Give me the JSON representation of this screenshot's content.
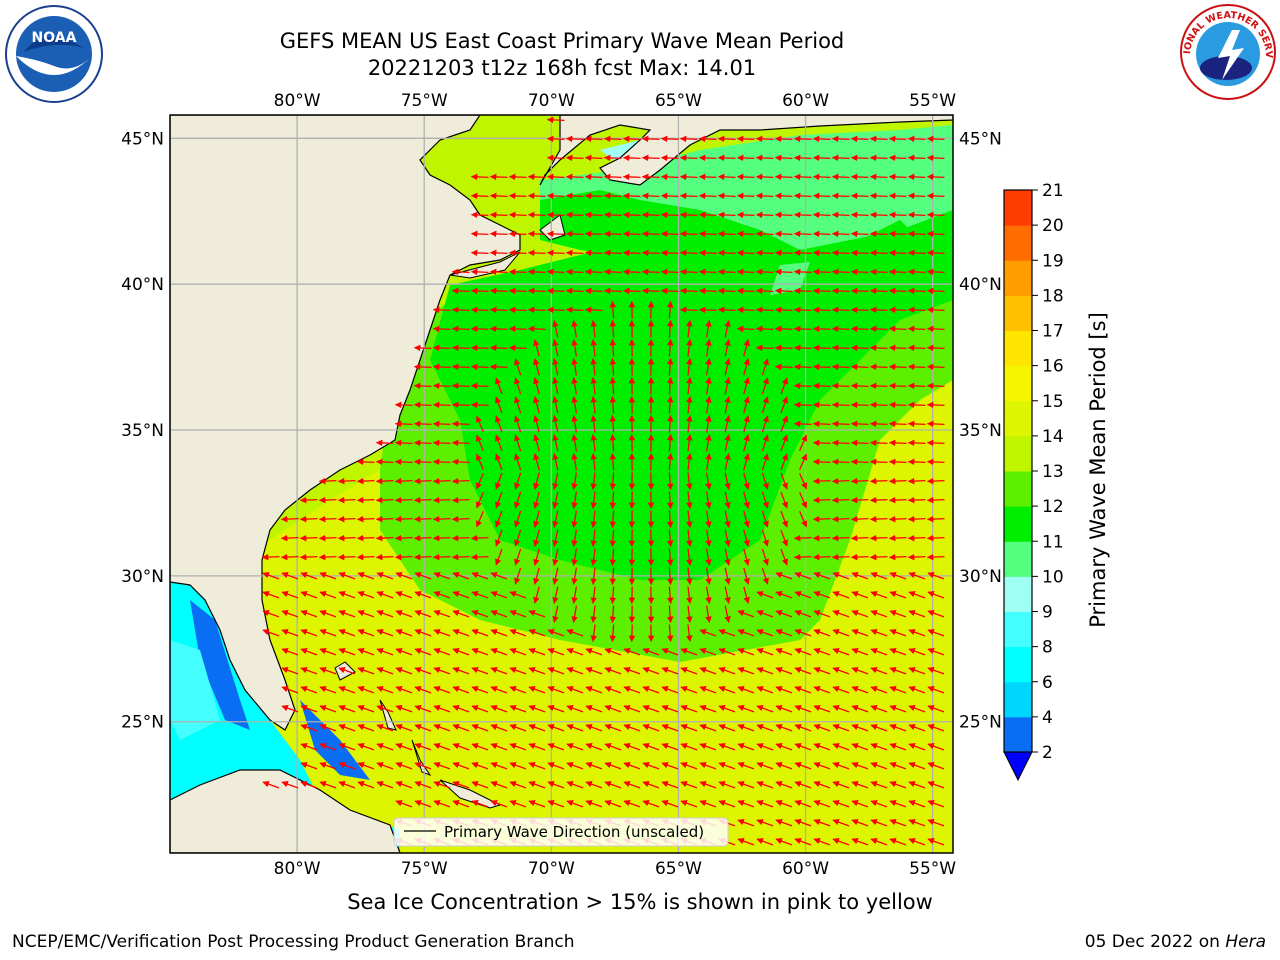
{
  "title": {
    "line1": "GEFS MEAN US East Coast Primary Wave Mean Period",
    "line2": "20221203 t12z 168h fcst   Max: 14.01"
  },
  "map": {
    "lon_labels": [
      "80°W",
      "75°W",
      "70°W",
      "65°W",
      "60°W",
      "55°W"
    ],
    "lat_labels": [
      "45°N",
      "40°N",
      "35°N",
      "30°N",
      "25°N"
    ],
    "extent": {
      "lon_min": -85,
      "lon_max": -54.2,
      "lat_min": 20.5,
      "lat_max": 45.8
    },
    "colors": {
      "land": "#efedda",
      "arrow": "#ff0000",
      "grid": "#b0b0b0",
      "coast": "#000000"
    },
    "legend_label": "Primary Wave Direction (unscaled)"
  },
  "colorbar": {
    "label": "Primary Wave Mean Period [s]",
    "ticks": [
      "2",
      "4",
      "6",
      "8",
      "9",
      "10",
      "11",
      "12",
      "13",
      "14",
      "15",
      "16",
      "17",
      "18",
      "19",
      "20",
      "21"
    ],
    "colors": [
      "#0a6ef5",
      "#00d7ff",
      "#00ffff",
      "#44ffff",
      "#a0fff5",
      "#55ff80",
      "#00ee00",
      "#5cf000",
      "#c0f500",
      "#ddf500",
      "#f5f500",
      "#ffe600",
      "#ffc000",
      "#ff9c00",
      "#ff6c00",
      "#ff3c00",
      "#ff0000"
    ],
    "extend_color": "#0000ff"
  },
  "footer": {
    "ice_note": "Sea Ice Concentration > 15% is shown in pink to yellow",
    "left": "NCEP/EMC/Verification Post Processing Product Generation Branch",
    "right_prefix": "05 Dec 2022 on",
    "right_machine": "Hera"
  },
  "logos": {
    "noaa_text": "NOAA",
    "nws_text": "NATIONAL WEATHER SERVICE"
  }
}
